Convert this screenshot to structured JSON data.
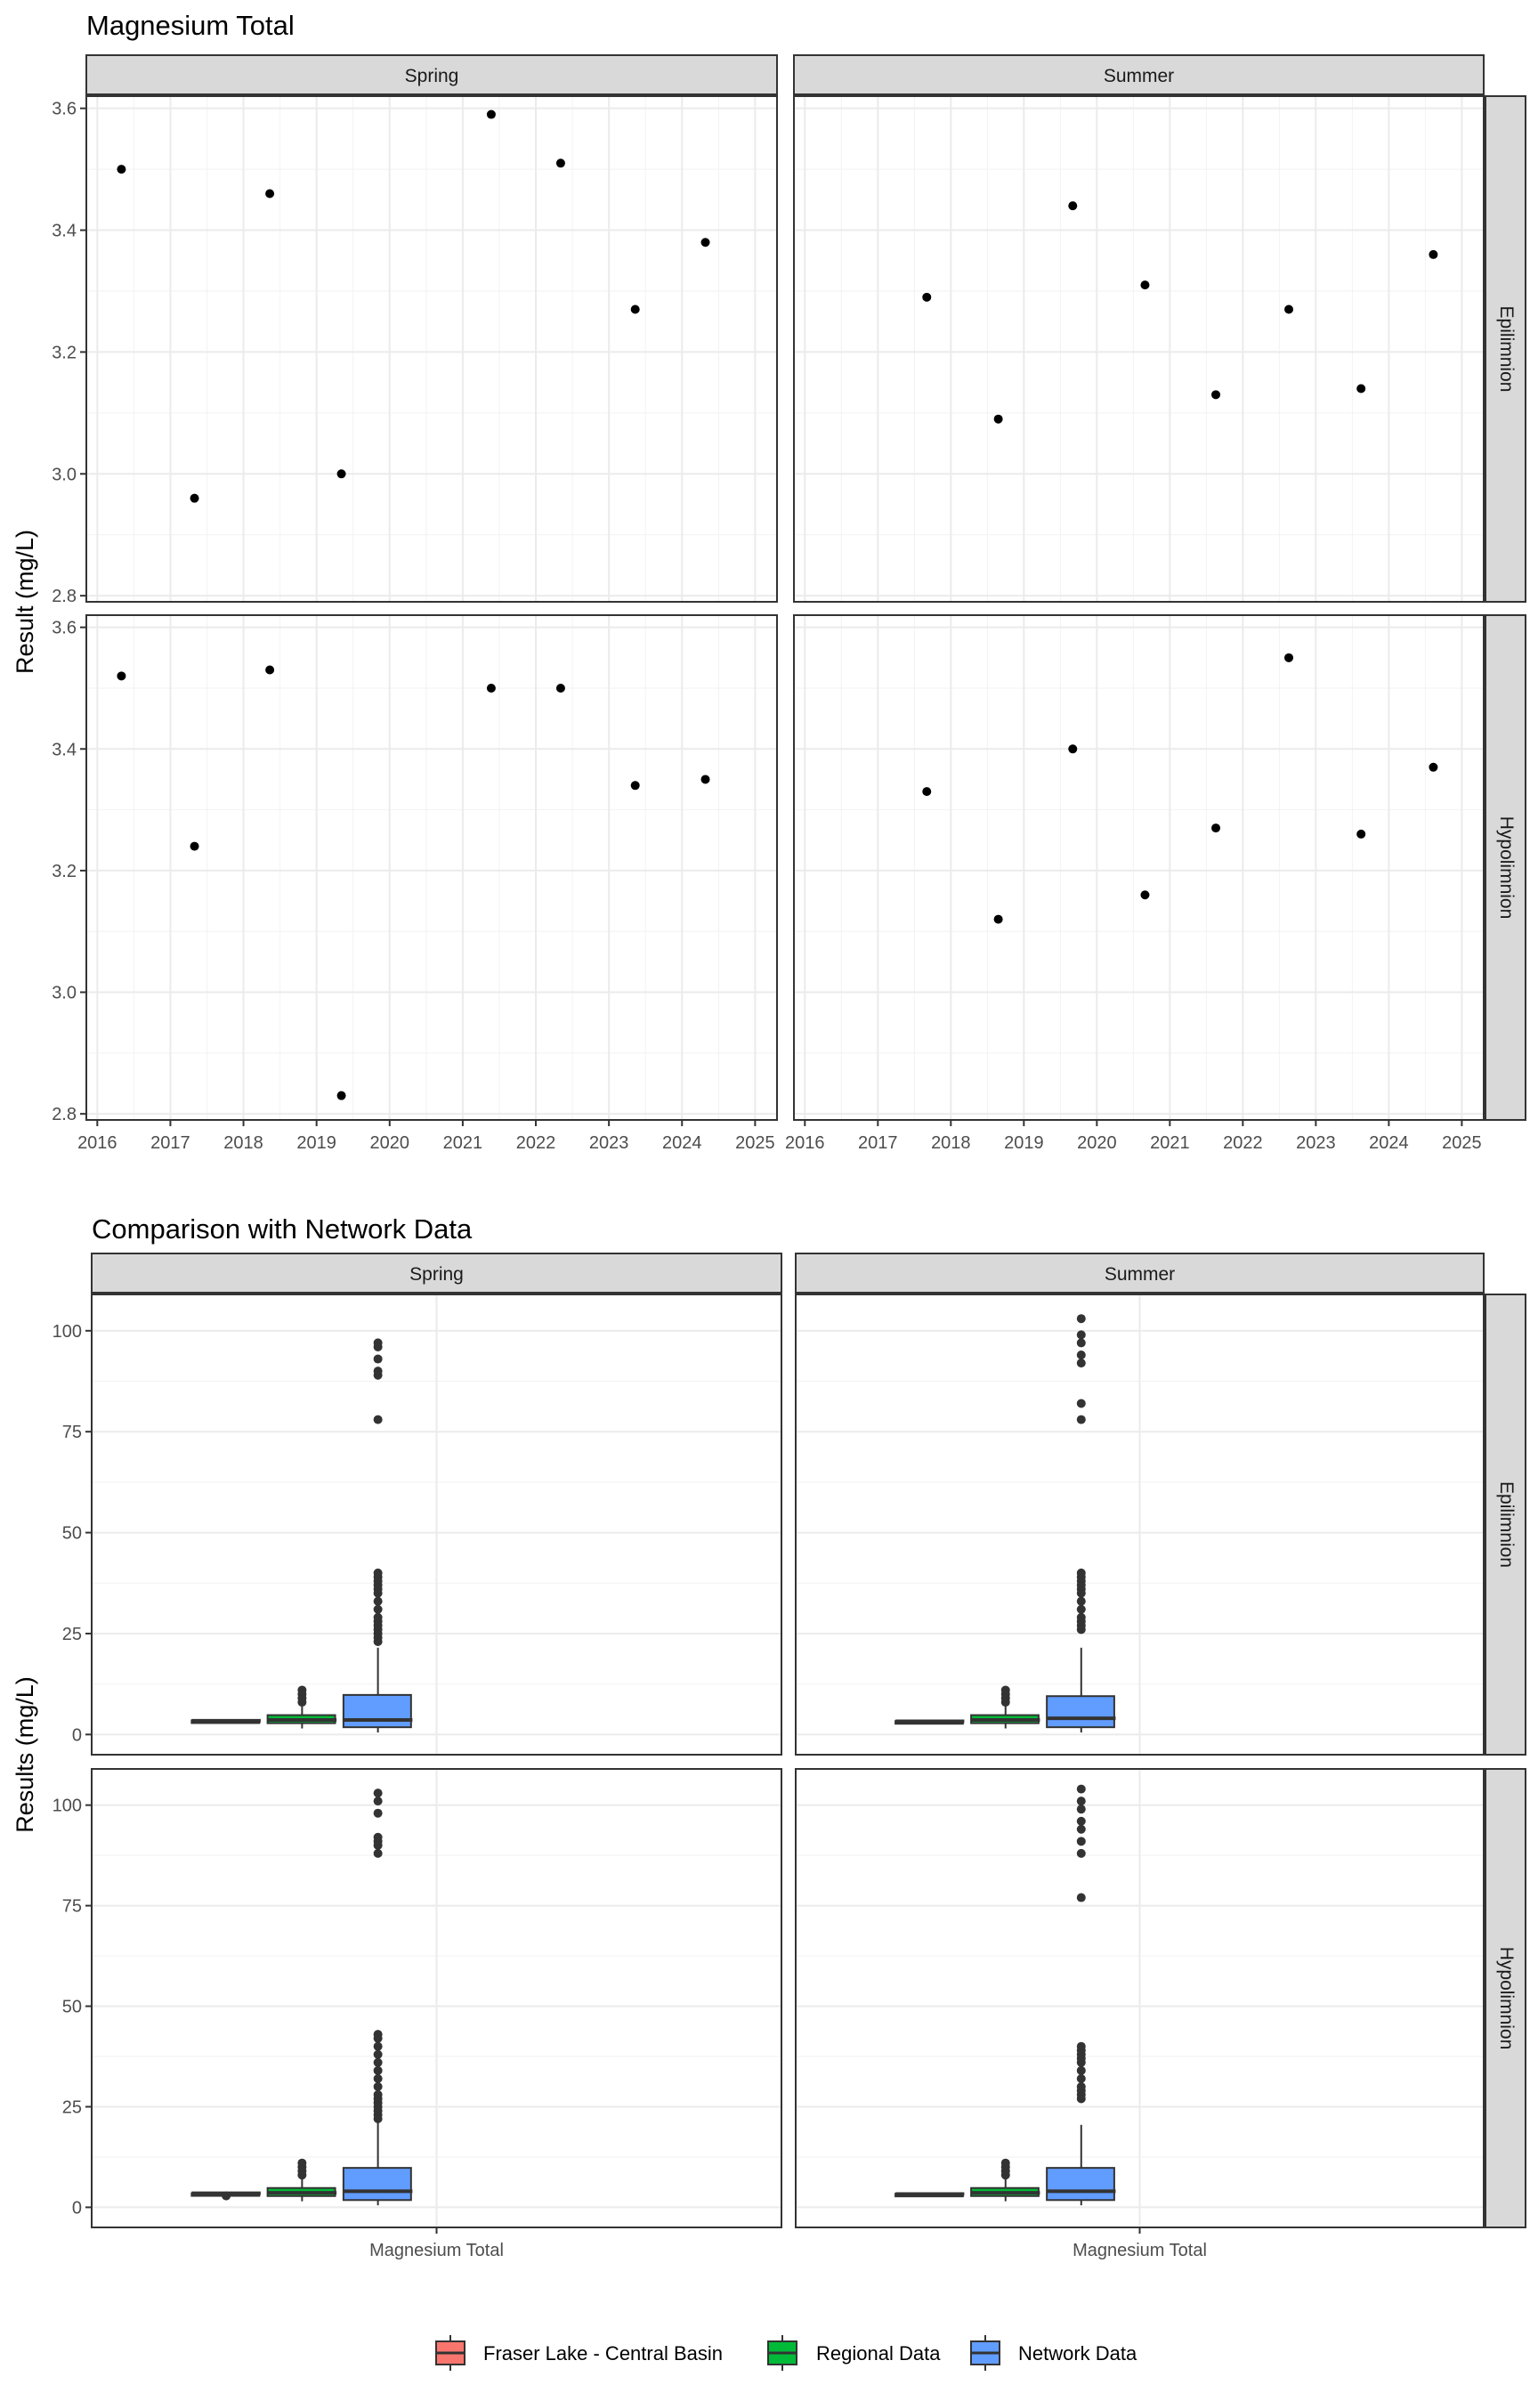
{
  "colors": {
    "fraser": "#F8766D",
    "regional": "#00BA38",
    "network": "#619CFF",
    "strip_bg": "#D9D9D9",
    "grid": "#EBEBEB",
    "point": "#000000",
    "outlier": "#333333"
  },
  "chart_data": [
    {
      "type": "scatter",
      "title": "Magnesium Total",
      "xlabel": "",
      "ylabel": "Result (mg/L)",
      "xlim": [
        2015.85,
        2025.3
      ],
      "ylim": [
        2.79,
        3.62
      ],
      "x_ticks": [
        "2016",
        "2017",
        "2018",
        "2019",
        "2020",
        "2021",
        "2022",
        "2023",
        "2024",
        "2025"
      ],
      "y_ticks": [
        "2.8",
        "3.0",
        "3.2",
        "3.4",
        "3.6"
      ],
      "facet_cols": [
        "Spring",
        "Summer"
      ],
      "facet_rows": [
        "Epilimnion",
        "Hypolimnion"
      ],
      "grid": true,
      "panels": [
        {
          "col": "Spring",
          "row": "Epilimnion",
          "x": [
            2016.33,
            2017.33,
            2018.36,
            2019.34,
            2021.39,
            2022.34,
            2023.36,
            2024.32
          ],
          "y": [
            3.5,
            2.96,
            3.46,
            3.0,
            3.59,
            3.51,
            3.27,
            3.38
          ]
        },
        {
          "col": "Summer",
          "row": "Epilimnion",
          "x": [
            2017.67,
            2018.65,
            2019.67,
            2020.66,
            2021.63,
            2022.63,
            2023.62,
            2024.61
          ],
          "y": [
            3.29,
            3.09,
            3.44,
            3.31,
            3.13,
            3.27,
            3.14,
            3.36
          ]
        },
        {
          "col": "Spring",
          "row": "Hypolimnion",
          "x": [
            2016.33,
            2017.33,
            2018.36,
            2019.34,
            2021.39,
            2022.34,
            2023.36,
            2024.32
          ],
          "y": [
            3.52,
            3.24,
            3.53,
            2.83,
            3.5,
            3.5,
            3.34,
            3.35
          ]
        },
        {
          "col": "Summer",
          "row": "Hypolimnion",
          "x": [
            2017.67,
            2018.65,
            2019.67,
            2020.66,
            2021.63,
            2022.63,
            2023.62,
            2024.61
          ],
          "y": [
            3.33,
            3.12,
            3.4,
            3.16,
            3.27,
            3.55,
            3.26,
            3.37
          ]
        }
      ]
    },
    {
      "type": "box",
      "title": "Comparison with Network Data",
      "xlabel": "",
      "ylabel": "Results (mg/L)",
      "categories": [
        "Magnesium Total"
      ],
      "ylim": [
        -5,
        109
      ],
      "y_ticks": [
        "0",
        "25",
        "50",
        "75",
        "100"
      ],
      "facet_cols": [
        "Spring",
        "Summer"
      ],
      "facet_rows": [
        "Epilimnion",
        "Hypolimnion"
      ],
      "grid": true,
      "legend": {
        "position": "bottom",
        "entries": [
          "Fraser Lake - Central Basin",
          "Regional Data",
          "Network Data"
        ]
      },
      "panels": [
        {
          "col": "Spring",
          "row": "Epilimnion",
          "groups": [
            {
              "name": "Fraser Lake - Central Basin",
              "stats": [
                2.96,
                3.27,
                3.42,
                3.5,
                3.59
              ],
              "outliers": []
            },
            {
              "name": "Regional Data",
              "stats": [
                1.5,
                2.8,
                3.6,
                4.8,
                7.5
              ],
              "outliers": [
                8,
                9,
                10,
                11
              ]
            },
            {
              "name": "Network Data",
              "stats": [
                0.5,
                1.8,
                3.6,
                9.8,
                21.5
              ],
              "outliers": [
                23,
                24,
                25,
                26,
                27,
                28,
                29,
                31,
                33,
                35,
                36,
                37,
                38,
                39,
                40,
                78,
                89,
                90,
                93,
                96,
                97
              ]
            }
          ]
        },
        {
          "col": "Summer",
          "row": "Epilimnion",
          "groups": [
            {
              "name": "Fraser Lake - Central Basin",
              "stats": [
                3.09,
                3.14,
                3.28,
                3.33,
                3.44
              ],
              "outliers": []
            },
            {
              "name": "Regional Data",
              "stats": [
                1.5,
                2.8,
                3.6,
                4.8,
                7.5
              ],
              "outliers": [
                8,
                9,
                10,
                11
              ]
            },
            {
              "name": "Network Data",
              "stats": [
                0.5,
                1.8,
                4.0,
                9.5,
                21.5
              ],
              "outliers": [
                26,
                27,
                28,
                29,
                31,
                33,
                35,
                36,
                37,
                38,
                39,
                40,
                78,
                82,
                92,
                94,
                97,
                99,
                103
              ]
            }
          ]
        },
        {
          "col": "Spring",
          "row": "Hypolimnion",
          "groups": [
            {
              "name": "Fraser Lake - Central Basin",
              "stats": [
                3.24,
                3.3,
                3.5,
                3.51,
                3.53
              ],
              "outliers": [
                2.83
              ]
            },
            {
              "name": "Regional Data",
              "stats": [
                1.5,
                2.8,
                3.6,
                4.8,
                7.5
              ],
              "outliers": [
                8,
                9,
                10,
                11
              ]
            },
            {
              "name": "Network Data",
              "stats": [
                0.5,
                1.8,
                4.0,
                9.8,
                21.5
              ],
              "outliers": [
                22,
                23,
                24,
                25,
                26,
                27,
                28,
                30,
                32,
                34,
                36,
                38,
                40,
                42,
                43,
                88,
                90,
                91,
                92,
                98,
                101,
                103
              ]
            }
          ]
        },
        {
          "col": "Summer",
          "row": "Hypolimnion",
          "groups": [
            {
              "name": "Fraser Lake - Central Basin",
              "stats": [
                3.12,
                3.23,
                3.3,
                3.38,
                3.55
              ],
              "outliers": []
            },
            {
              "name": "Regional Data",
              "stats": [
                1.5,
                2.8,
                3.6,
                4.8,
                7.5
              ],
              "outliers": [
                8,
                9,
                10,
                11
              ]
            },
            {
              "name": "Network Data",
              "stats": [
                0.5,
                1.8,
                4.0,
                9.8,
                20.5
              ],
              "outliers": [
                27,
                28,
                29,
                30,
                32,
                34,
                36,
                37,
                38,
                39,
                40,
                77,
                88,
                91,
                94,
                96,
                99,
                101,
                104
              ]
            }
          ]
        }
      ]
    }
  ]
}
